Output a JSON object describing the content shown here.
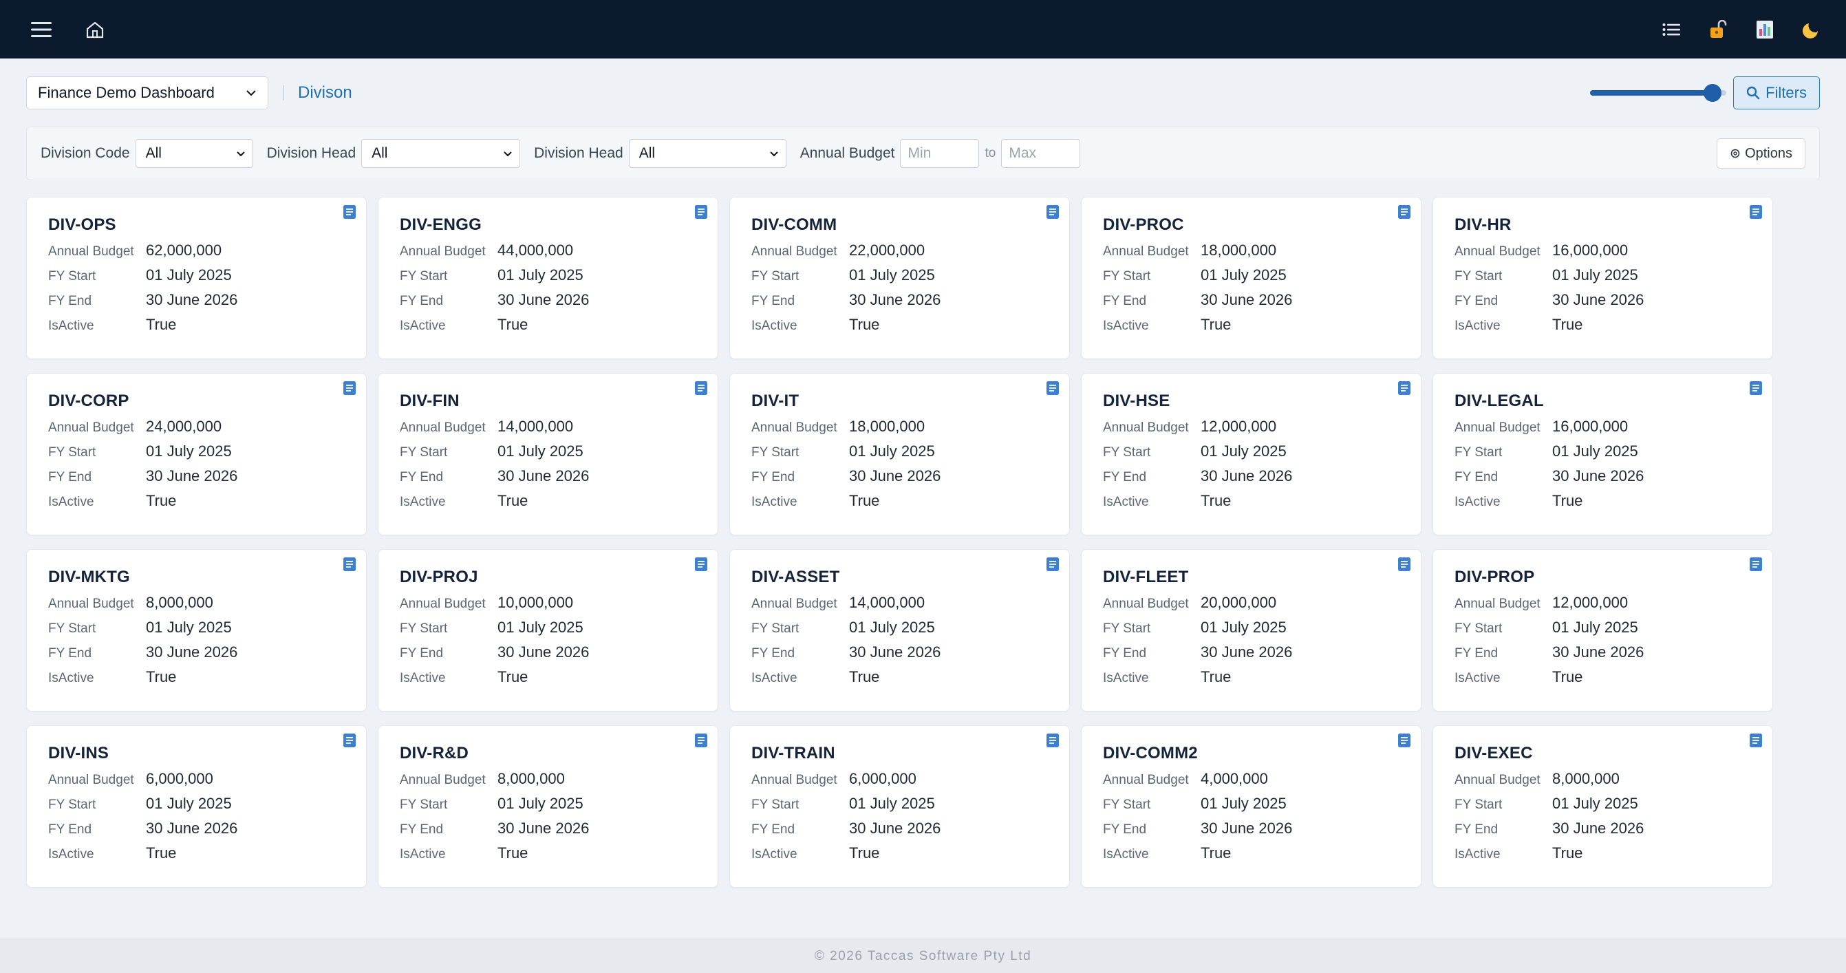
{
  "topbar": {
    "left_icons": [
      "menu-icon",
      "home-icon"
    ],
    "right_icons": [
      "list-icon",
      "unlock-icon",
      "report-icon",
      "moon-icon"
    ]
  },
  "header": {
    "dashboard_select": "Finance Demo Dashboard",
    "breadcrumb": "Divison",
    "zoom_level": 0.9,
    "filters_label": "Filters"
  },
  "filters": {
    "division_code_label": "Division Code",
    "division_code_value": "All",
    "division_head_label": "Division Head",
    "division_head_value": "All",
    "division_head2_label": "Division Head",
    "division_head2_value": "All",
    "annual_budget_label": "Annual Budget",
    "min_placeholder": "Min",
    "to_label": "to",
    "max_placeholder": "Max",
    "options_label": "Options"
  },
  "field_labels": {
    "budget": "Annual Budget",
    "fy_start": "FY Start",
    "fy_end": "FY End",
    "is_active": "IsActive"
  },
  "cards": [
    {
      "code": "DIV-OPS",
      "budget": "62,000,000",
      "fy_start": "01 July 2025",
      "fy_end": "30 June 2026",
      "is_active": "True"
    },
    {
      "code": "DIV-ENGG",
      "budget": "44,000,000",
      "fy_start": "01 July 2025",
      "fy_end": "30 June 2026",
      "is_active": "True"
    },
    {
      "code": "DIV-COMM",
      "budget": "22,000,000",
      "fy_start": "01 July 2025",
      "fy_end": "30 June 2026",
      "is_active": "True"
    },
    {
      "code": "DIV-PROC",
      "budget": "18,000,000",
      "fy_start": "01 July 2025",
      "fy_end": "30 June 2026",
      "is_active": "True"
    },
    {
      "code": "DIV-HR",
      "budget": "16,000,000",
      "fy_start": "01 July 2025",
      "fy_end": "30 June 2026",
      "is_active": "True"
    },
    {
      "code": "DIV-CORP",
      "budget": "24,000,000",
      "fy_start": "01 July 2025",
      "fy_end": "30 June 2026",
      "is_active": "True"
    },
    {
      "code": "DIV-FIN",
      "budget": "14,000,000",
      "fy_start": "01 July 2025",
      "fy_end": "30 June 2026",
      "is_active": "True"
    },
    {
      "code": "DIV-IT",
      "budget": "18,000,000",
      "fy_start": "01 July 2025",
      "fy_end": "30 June 2026",
      "is_active": "True"
    },
    {
      "code": "DIV-HSE",
      "budget": "12,000,000",
      "fy_start": "01 July 2025",
      "fy_end": "30 June 2026",
      "is_active": "True"
    },
    {
      "code": "DIV-LEGAL",
      "budget": "16,000,000",
      "fy_start": "01 July 2025",
      "fy_end": "30 June 2026",
      "is_active": "True"
    },
    {
      "code": "DIV-MKTG",
      "budget": "8,000,000",
      "fy_start": "01 July 2025",
      "fy_end": "30 June 2026",
      "is_active": "True"
    },
    {
      "code": "DIV-PROJ",
      "budget": "10,000,000",
      "fy_start": "01 July 2025",
      "fy_end": "30 June 2026",
      "is_active": "True"
    },
    {
      "code": "DIV-ASSET",
      "budget": "14,000,000",
      "fy_start": "01 July 2025",
      "fy_end": "30 June 2026",
      "is_active": "True"
    },
    {
      "code": "DIV-FLEET",
      "budget": "20,000,000",
      "fy_start": "01 July 2025",
      "fy_end": "30 June 2026",
      "is_active": "True"
    },
    {
      "code": "DIV-PROP",
      "budget": "12,000,000",
      "fy_start": "01 July 2025",
      "fy_end": "30 June 2026",
      "is_active": "True"
    },
    {
      "code": "DIV-INS",
      "budget": "6,000,000",
      "fy_start": "01 July 2025",
      "fy_end": "30 June 2026",
      "is_active": "True"
    },
    {
      "code": "DIV-R&D",
      "budget": "8,000,000",
      "fy_start": "01 July 2025",
      "fy_end": "30 June 2026",
      "is_active": "True"
    },
    {
      "code": "DIV-TRAIN",
      "budget": "6,000,000",
      "fy_start": "01 July 2025",
      "fy_end": "30 June 2026",
      "is_active": "True"
    },
    {
      "code": "DIV-COMM2",
      "budget": "4,000,000",
      "fy_start": "01 July 2025",
      "fy_end": "30 June 2026",
      "is_active": "True"
    },
    {
      "code": "DIV-EXEC",
      "budget": "8,000,000",
      "fy_start": "01 July 2025",
      "fy_end": "30 June 2026",
      "is_active": "True"
    }
  ],
  "footer": {
    "text": "© 2026 Taccas Software Pty Ltd"
  },
  "colors": {
    "navbar": "#0c1a2e",
    "accent": "#1c6fb0",
    "page_bg": "#eef2f7"
  }
}
